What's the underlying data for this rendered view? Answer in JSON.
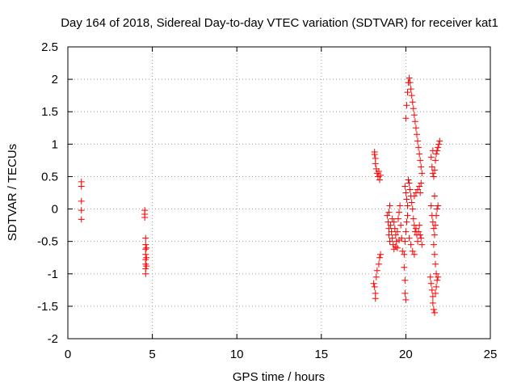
{
  "chart_data": {
    "type": "scatter",
    "title": "Day 164 of 2018, Sidereal Day-to-day VTEC variation (SDTVAR) for receiver kat1",
    "xlabel": "GPS time / hours",
    "ylabel": "SDTVAR / TECUs",
    "xlim": [
      0,
      25
    ],
    "ylim": [
      -2,
      2.5
    ],
    "x_ticks": [
      0,
      5,
      10,
      15,
      20,
      25
    ],
    "x_tick_labels": [
      "0",
      "5",
      "10",
      "15",
      "20",
      "25"
    ],
    "y_ticks": [
      -2,
      -1.5,
      -1,
      -0.5,
      0,
      0.5,
      1,
      1.5,
      2,
      2.5
    ],
    "y_tick_labels": [
      "-2",
      "-1.5",
      "-1",
      "-0.5",
      "0",
      "0.5",
      "1",
      "1.5",
      "2",
      "2.5"
    ],
    "grid": true,
    "marker": "+",
    "marker_color": "#ff0000",
    "series": [
      {
        "name": "kat1",
        "points": [
          [
            0.8,
            0.42
          ],
          [
            0.8,
            0.35
          ],
          [
            0.8,
            0.12
          ],
          [
            0.8,
            -0.02
          ],
          [
            0.8,
            -0.16
          ],
          [
            4.55,
            -0.02
          ],
          [
            4.55,
            -0.08
          ],
          [
            4.55,
            -0.13
          ],
          [
            4.6,
            -0.45
          ],
          [
            4.6,
            -0.55
          ],
          [
            4.6,
            -0.62
          ],
          [
            4.6,
            -0.7
          ],
          [
            4.6,
            -0.78
          ],
          [
            4.6,
            -0.85
          ],
          [
            4.6,
            -0.92
          ],
          [
            4.6,
            -1.0
          ],
          [
            4.65,
            -0.6
          ],
          [
            4.65,
            -0.75
          ],
          [
            4.65,
            -0.88
          ],
          [
            18.15,
            0.88
          ],
          [
            18.15,
            0.84
          ],
          [
            18.2,
            0.78
          ],
          [
            18.2,
            0.7
          ],
          [
            18.25,
            0.62
          ],
          [
            18.3,
            0.55
          ],
          [
            18.35,
            0.5
          ],
          [
            18.4,
            0.58
          ],
          [
            18.45,
            0.45
          ],
          [
            18.5,
            0.52
          ],
          [
            18.1,
            -1.15
          ],
          [
            18.15,
            -1.2
          ],
          [
            18.2,
            -1.3
          ],
          [
            18.2,
            -1.38
          ],
          [
            18.25,
            -1.05
          ],
          [
            18.3,
            -0.95
          ],
          [
            18.4,
            -0.85
          ],
          [
            18.45,
            -0.75
          ],
          [
            18.5,
            -0.7
          ],
          [
            18.9,
            -0.1
          ],
          [
            18.95,
            -0.2
          ],
          [
            19.0,
            -0.3
          ],
          [
            19.0,
            -0.4
          ],
          [
            19.05,
            -0.5
          ],
          [
            19.1,
            -0.25
          ],
          [
            19.15,
            -0.35
          ],
          [
            19.2,
            -0.45
          ],
          [
            19.25,
            -0.55
          ],
          [
            19.3,
            -0.62
          ],
          [
            19.35,
            -0.3
          ],
          [
            19.4,
            -0.4
          ],
          [
            19.45,
            -0.5
          ],
          [
            19.5,
            -0.6
          ],
          [
            19.55,
            -0.15
          ],
          [
            19.6,
            -0.05
          ],
          [
            19.65,
            0.05
          ],
          [
            19.7,
            -0.25
          ],
          [
            19.75,
            -0.45
          ],
          [
            19.8,
            -0.65
          ],
          [
            19.0,
            -0.05
          ],
          [
            19.05,
            0.05
          ],
          [
            19.2,
            -0.15
          ],
          [
            19.3,
            -0.2
          ],
          [
            19.4,
            -0.58
          ],
          [
            19.5,
            -0.35
          ],
          [
            19.6,
            -0.48
          ],
          [
            19.95,
            0.35
          ],
          [
            20.0,
            0.25
          ],
          [
            20.05,
            0.15
          ],
          [
            20.1,
            0.05
          ],
          [
            20.1,
            -0.1
          ],
          [
            20.05,
            -0.2
          ],
          [
            20.0,
            -0.35
          ],
          [
            19.95,
            -0.5
          ],
          [
            19.9,
            -0.7
          ],
          [
            19.9,
            -0.9
          ],
          [
            19.95,
            -1.1
          ],
          [
            19.95,
            -1.3
          ],
          [
            20.0,
            -1.4
          ],
          [
            20.15,
            0.45
          ],
          [
            20.2,
            0.4
          ],
          [
            20.25,
            0.3
          ],
          [
            20.3,
            0.2
          ],
          [
            20.35,
            0.1
          ],
          [
            20.4,
            0.0
          ],
          [
            20.45,
            -0.15
          ],
          [
            20.5,
            -0.25
          ],
          [
            20.55,
            -0.35
          ],
          [
            20.6,
            -0.3
          ],
          [
            20.65,
            -0.4
          ],
          [
            20.7,
            -0.5
          ],
          [
            20.75,
            -0.35
          ],
          [
            20.8,
            -0.25
          ],
          [
            20.85,
            -0.4
          ],
          [
            20.9,
            -0.45
          ],
          [
            20.95,
            -0.55
          ],
          [
            20.5,
            0.2
          ],
          [
            20.6,
            0.25
          ],
          [
            20.7,
            0.3
          ],
          [
            20.8,
            0.35
          ],
          [
            20.85,
            0.25
          ],
          [
            20.9,
            0.4
          ],
          [
            20.3,
            -0.55
          ],
          [
            20.4,
            -0.65
          ],
          [
            20.5,
            -0.7
          ],
          [
            20.2,
            -0.45
          ],
          [
            20.0,
            1.4
          ],
          [
            20.05,
            1.6
          ],
          [
            20.1,
            1.8
          ],
          [
            20.15,
            1.95
          ],
          [
            20.2,
            2.02
          ],
          [
            20.25,
            1.95
          ],
          [
            20.3,
            1.85
          ],
          [
            20.35,
            1.75
          ],
          [
            20.4,
            1.65
          ],
          [
            20.45,
            1.55
          ],
          [
            20.5,
            1.45
          ],
          [
            20.55,
            1.35
          ],
          [
            20.6,
            1.25
          ],
          [
            20.65,
            1.15
          ],
          [
            20.7,
            1.05
          ],
          [
            20.75,
            0.95
          ],
          [
            20.8,
            0.85
          ],
          [
            20.85,
            0.75
          ],
          [
            20.9,
            0.65
          ],
          [
            20.95,
            0.55
          ],
          [
            21.5,
            0.8
          ],
          [
            21.55,
            0.65
          ],
          [
            21.6,
            0.55
          ],
          [
            21.65,
            0.5
          ],
          [
            21.7,
            0.6
          ],
          [
            21.75,
            0.75
          ],
          [
            21.8,
            0.85
          ],
          [
            21.85,
            0.9
          ],
          [
            21.9,
            0.95
          ],
          [
            21.95,
            1.0
          ],
          [
            22.0,
            1.05
          ],
          [
            21.6,
            0.9
          ],
          [
            21.5,
            0.05
          ],
          [
            21.55,
            -0.1
          ],
          [
            21.6,
            -0.2
          ],
          [
            21.65,
            -0.3
          ],
          [
            21.7,
            -0.4
          ],
          [
            21.75,
            -0.25
          ],
          [
            21.8,
            -0.1
          ],
          [
            21.85,
            0.0
          ],
          [
            21.9,
            0.05
          ],
          [
            21.7,
            0.2
          ],
          [
            21.65,
            -0.55
          ],
          [
            21.7,
            -0.7
          ],
          [
            21.75,
            -0.85
          ],
          [
            21.8,
            -1.0
          ],
          [
            21.45,
            -1.05
          ],
          [
            21.5,
            -1.15
          ],
          [
            21.55,
            -1.25
          ],
          [
            21.6,
            -1.35
          ],
          [
            21.6,
            -1.45
          ],
          [
            21.65,
            -1.55
          ],
          [
            21.7,
            -1.6
          ],
          [
            21.75,
            -1.3
          ],
          [
            21.8,
            -1.2
          ],
          [
            21.85,
            -1.1
          ],
          [
            21.9,
            -1.05
          ]
        ]
      }
    ]
  }
}
